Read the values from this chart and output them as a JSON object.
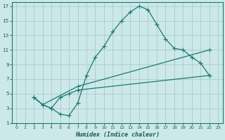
{
  "xlabel": "Humidex (Indice chaleur)",
  "bg_color": "#cce8e8",
  "grid_color": "#aacccc",
  "line_color": "#1a7a6e",
  "xlim": [
    -0.5,
    23.5
  ],
  "ylim": [
    1,
    17.5
  ],
  "xticks": [
    0,
    1,
    2,
    3,
    4,
    5,
    6,
    7,
    8,
    9,
    10,
    11,
    12,
    13,
    14,
    15,
    16,
    17,
    18,
    19,
    20,
    21,
    22,
    23
  ],
  "yticks": [
    1,
    3,
    5,
    7,
    9,
    11,
    13,
    15,
    17
  ],
  "curve1_x": [
    2,
    3,
    4,
    5,
    6,
    7,
    8,
    9,
    10,
    11,
    12,
    13,
    14,
    15,
    16,
    17,
    18,
    19,
    20,
    21,
    22
  ],
  "curve1_y": [
    4.5,
    3.5,
    3.0,
    2.2,
    2.0,
    3.7,
    7.5,
    10.0,
    11.5,
    13.5,
    15.0,
    16.2,
    17.0,
    16.5,
    14.5,
    12.5,
    11.2,
    11.0,
    10.0,
    9.2,
    7.5
  ],
  "curve2_x": [
    2,
    3,
    4,
    5,
    6,
    7,
    22
  ],
  "curve2_y": [
    4.5,
    3.5,
    3.0,
    4.5,
    5.0,
    5.5,
    7.5
  ],
  "curve3_x": [
    2,
    3,
    7,
    22
  ],
  "curve3_y": [
    4.5,
    3.5,
    6.0,
    11.0
  ]
}
